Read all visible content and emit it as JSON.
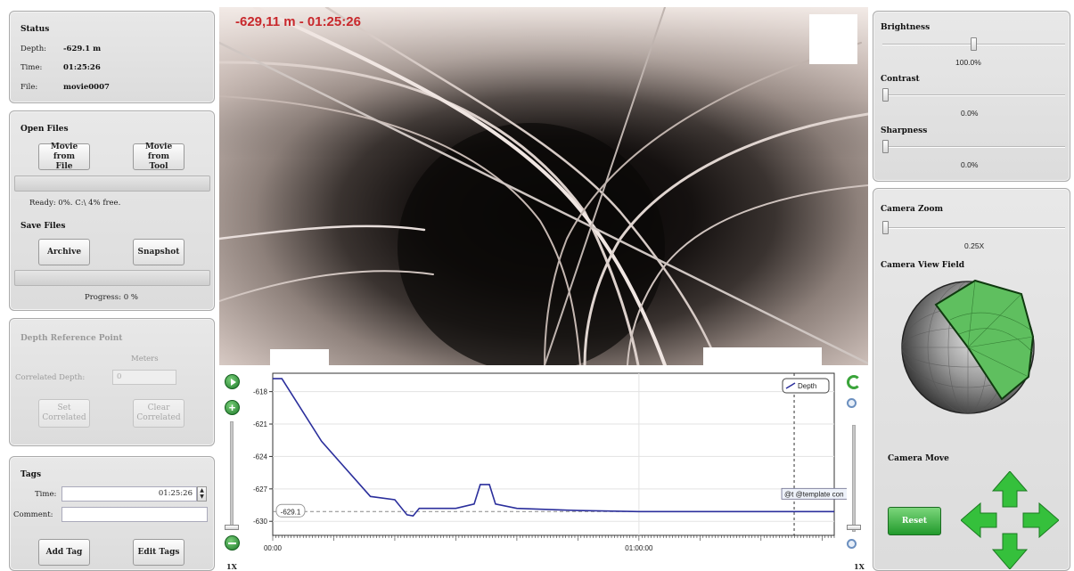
{
  "status": {
    "title": "Status",
    "depth_label": "Depth:",
    "depth_value": "-629.1 m",
    "time_label": "Time:",
    "time_value": "01:25:26",
    "file_label": "File:",
    "file_value": "movie0007"
  },
  "files": {
    "open_title": "Open Files",
    "movie_from_file": "Movie from\nFile",
    "movie_from_tool": "Movie from\nTool",
    "ready_text": "Ready: 0%. C:\\ 4% free.",
    "save_title": "Save Files",
    "archive": "Archive",
    "snapshot": "Snapshot",
    "progress_text": "Progress: 0 %",
    "open_progress": 0,
    "save_progress": 0
  },
  "depth_ref": {
    "title": "Depth Reference Point",
    "meters_label": "Meters",
    "correlated_label": "Correlated Depth:",
    "correlated_value": "0",
    "set_button": "Set\nCorrelated",
    "clear_button": "Clear\nCorrelated"
  },
  "tags": {
    "title": "Tags",
    "time_label": "Time:",
    "time_value": "01:25:26",
    "comment_label": "Comment:",
    "comment_value": "",
    "add_button": "Add Tag",
    "edit_button": "Edit Tags"
  },
  "video": {
    "caption": "-629,11 m - 01:25:26"
  },
  "image_adjust": {
    "brightness_label": "Brightness",
    "brightness_value": "100.0%",
    "brightness_level": 1.0,
    "contrast_label": "Contrast",
    "contrast_value": "0.0%",
    "contrast_level": 0,
    "sharpness_label": "Sharpness",
    "sharpness_value": "0.0%",
    "sharpness_level": 0
  },
  "camera": {
    "zoom_title": "Camera Zoom",
    "zoom_value": "0.25X",
    "zoom_level": 0,
    "view_field_title": "Camera View Field",
    "move_title": "Camera Move",
    "reset_button": "Reset"
  },
  "plot_controls": {
    "left_zoom_label": "1X",
    "right_zoom_label": "1X"
  },
  "colors": {
    "caption_red": "#c8282c",
    "depth_line": "#2b2f9c",
    "camera_green": "#2fb53a",
    "view_field_green": "#5fbf5f"
  },
  "chart_data": {
    "type": "line",
    "series": [
      {
        "name": "Depth",
        "x": [
          "00:00:00",
          "00:01:30",
          "00:08:00",
          "00:16:00",
          "00:20:00",
          "00:22:00",
          "00:23:00",
          "00:24:00",
          "00:30:00",
          "00:33:00",
          "00:34:00",
          "00:35:30",
          "00:36:30",
          "00:40:00",
          "00:50:00",
          "01:00:00",
          "01:10:00",
          "01:20:00",
          "01:32:00"
        ],
        "y": [
          -616.8,
          -616.8,
          -622.6,
          -627.7,
          -628.0,
          -629.4,
          -629.5,
          -628.8,
          -628.8,
          -628.4,
          -626.6,
          -626.6,
          -628.4,
          -628.8,
          -629.0,
          -629.1,
          -629.1,
          -629.1,
          -629.1
        ]
      }
    ],
    "y_ticks": [
      "-618",
      "-621",
      "-624",
      "-627",
      "-630"
    ],
    "x_ticks": [
      "00:00",
      "01:00:00"
    ],
    "ylim": [
      -631.3,
      -616.3
    ],
    "xlim": [
      "00:00:00",
      "01:32:00"
    ],
    "reference_value": "-629.1",
    "cursor_time": "01:25:26",
    "grid": true,
    "legend_position": "top-right",
    "annotation": "@t @template con"
  }
}
